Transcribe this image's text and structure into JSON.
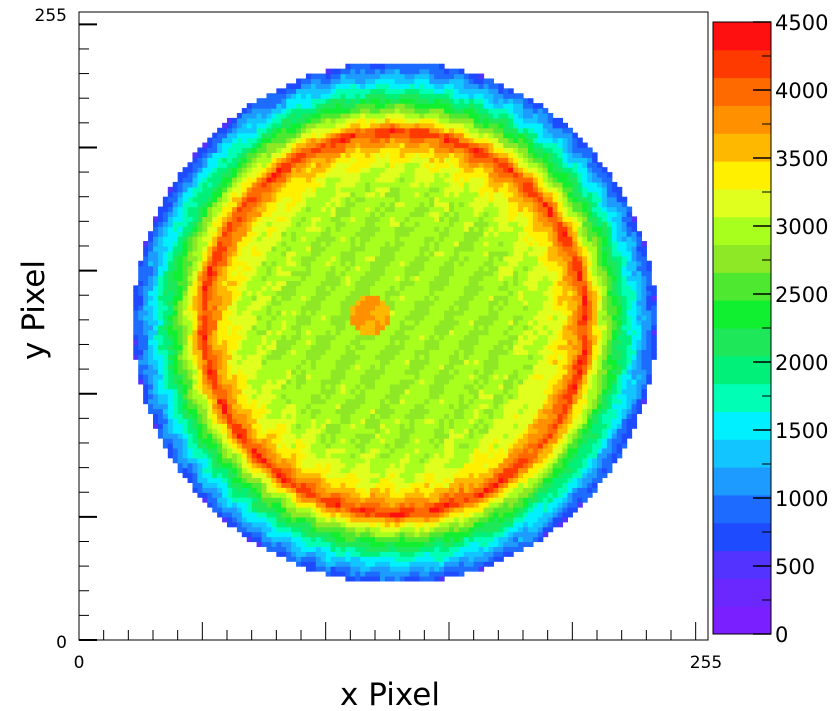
{
  "chart_data": {
    "type": "heatmap",
    "title": "",
    "xlabel": "x Pixel",
    "ylabel": "y Pixel",
    "xlim": [
      0,
      255
    ],
    "ylim": [
      0,
      255
    ],
    "x_tick_labels": [
      "0",
      "255"
    ],
    "y_tick_labels": [
      "0",
      "255"
    ],
    "zlim": [
      0,
      4500
    ],
    "colorbar_tick_values": [
      0,
      500,
      1000,
      1500,
      2000,
      2500,
      3000,
      3500,
      4000,
      4500
    ],
    "colorbar_tick_labels": [
      "0",
      "500",
      "1000",
      "1500",
      "2000",
      "2500",
      "3000",
      "3500",
      "4000",
      "4500"
    ],
    "colorbar_colors": [
      "#7a1fff",
      "#6a28ff",
      "#5233ff",
      "#1f4bff",
      "#1d6cff",
      "#1e9bff",
      "#12c5ff",
      "#00f0ff",
      "#00ffb4",
      "#00f07a",
      "#1ee85a",
      "#10f030",
      "#4ee830",
      "#8ee826",
      "#a8ff1e",
      "#e0ff1e",
      "#fff000",
      "#ffb800",
      "#ff9000",
      "#ff6a00",
      "#ff3a00",
      "#ff1010"
    ],
    "distribution": {
      "center": [
        127,
        128
      ],
      "radius": 106,
      "ring_radius": 78,
      "ring_value": 4300,
      "inner_value": 2900,
      "outer_value": 700,
      "spot_center": [
        117,
        131
      ],
      "spot_radius": 8,
      "spot_value": 3700
    },
    "grid": false,
    "legend": "none"
  }
}
